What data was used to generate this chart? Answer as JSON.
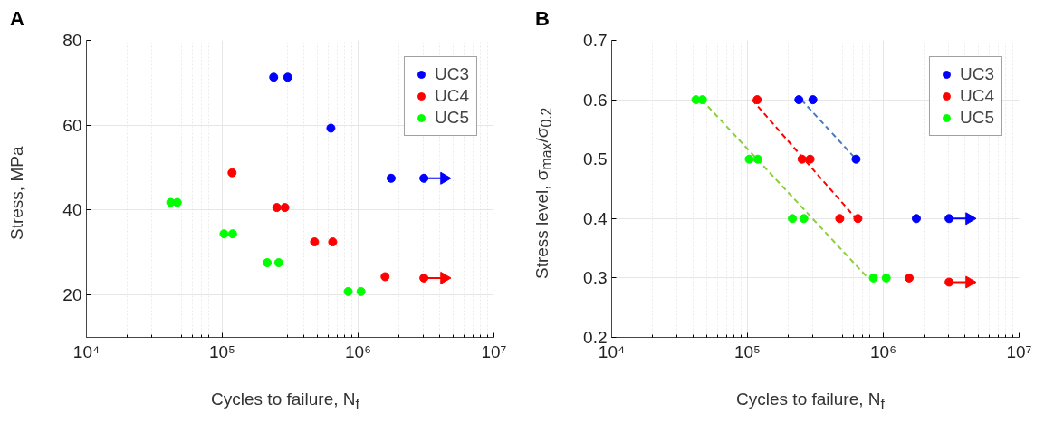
{
  "chart_data": [
    {
      "type": "scatter",
      "title": "A",
      "xlabel": "Cycles to failure, N$_{f}$",
      "ylabel": "Stress, MPa",
      "log": "x",
      "grid": true,
      "legend": "top right",
      "marker": "circle",
      "xlim": [
        10000,
        10000000
      ],
      "xticks": [
        {
          "value": 10000,
          "label": "10⁴"
        },
        {
          "value": 100000,
          "label": "10⁵"
        },
        {
          "value": 1000000,
          "label": "10⁶"
        },
        {
          "value": 10000000,
          "label": "10⁷"
        }
      ],
      "ylim": [
        10,
        80
      ],
      "yticks": [
        20,
        40,
        60,
        80
      ],
      "series": [
        {
          "name": "UC3",
          "color": "#0000ff",
          "x": [
            239000,
            303000,
            630000,
            1750000,
            3050000
          ],
          "values": [
            71.3,
            71.3,
            59.3,
            47.5,
            47.5
          ]
        },
        {
          "name": "UC4",
          "color": "#ff0000",
          "x": [
            118000,
            252000,
            289000,
            478000,
            650000,
            1580000,
            3050000
          ],
          "values": [
            48.8,
            40.6,
            40.6,
            32.5,
            32.5,
            24.3,
            24.0
          ]
        },
        {
          "name": "UC5",
          "color": "#00ff00",
          "x": [
            41700,
            46600,
            103000,
            119000,
            214000,
            260000,
            845000,
            1050000
          ],
          "values": [
            41.8,
            41.8,
            34.4,
            34.4,
            27.6,
            27.6,
            20.8,
            20.8
          ]
        },
        {
          "type": "line",
          "color": "#0000ff",
          "line_style": "solid",
          "marker": "triangle",
          "x": [
            3050000,
            4300000
          ],
          "values": [
            47.5,
            47.5
          ]
        },
        {
          "type": "line",
          "color": "#ff0000",
          "line_style": "solid",
          "marker": "triangle",
          "x": [
            3050000,
            4300000
          ],
          "values": [
            24.0,
            24.0
          ]
        }
      ]
    },
    {
      "type": "scatter",
      "title": "B",
      "xlabel": "Cycles to failure, N$_{f}$",
      "ylabel": "Stress level, σ$_{max}$/σ$_{0.2}$",
      "log": "x",
      "grid": true,
      "legend": "top right",
      "marker": "circle",
      "xlim": [
        10000,
        10000000
      ],
      "xticks": [
        {
          "value": 10000,
          "label": "10⁴"
        },
        {
          "value": 100000,
          "label": "10⁵"
        },
        {
          "value": 1000000,
          "label": "10⁶"
        },
        {
          "value": 10000000,
          "label": "10⁷"
        }
      ],
      "ylim": [
        0.2,
        0.7
      ],
      "yticks": [
        0.2,
        0.3,
        0.4,
        0.5,
        0.6,
        0.7
      ],
      "series": [
        {
          "type": "line",
          "color": "#4a7cc0",
          "line_style": "dashed",
          "marker": "none",
          "x": [
            249000,
            630000
          ],
          "values": [
            0.6,
            0.5
          ]
        },
        {
          "type": "line",
          "color": "#ff0000",
          "line_style": "dashed",
          "marker": "none",
          "x": [
            108000,
            630000
          ],
          "values": [
            0.6,
            0.4
          ]
        },
        {
          "type": "line",
          "color": "#8ccf3c",
          "line_style": "dashed",
          "marker": "none",
          "x": [
            46000,
            770000
          ],
          "values": [
            0.6,
            0.3
          ]
        },
        {
          "name": "UC3",
          "color": "#0000ff",
          "x": [
            239000,
            303000,
            630000,
            1750000,
            3050000
          ],
          "values": [
            0.6,
            0.6,
            0.5,
            0.4,
            0.4
          ]
        },
        {
          "name": "UC4",
          "color": "#ff0000",
          "x": [
            118000,
            252000,
            289000,
            478000,
            650000,
            1550000,
            3050000
          ],
          "values": [
            0.6,
            0.5,
            0.5,
            0.4,
            0.4,
            0.3,
            0.293
          ]
        },
        {
          "name": "UC5",
          "color": "#00ff00",
          "x": [
            41700,
            46600,
            103000,
            119000,
            214000,
            260000,
            845000,
            1050000
          ],
          "values": [
            0.6,
            0.6,
            0.5,
            0.5,
            0.4,
            0.4,
            0.3,
            0.3
          ]
        },
        {
          "type": "line",
          "color": "#0000ff",
          "line_style": "solid",
          "marker": "triangle",
          "x": [
            3050000,
            4300000
          ],
          "values": [
            0.4,
            0.4
          ]
        },
        {
          "type": "line",
          "color": "#ff0000",
          "line_style": "solid",
          "marker": "triangle",
          "x": [
            3050000,
            4300000
          ],
          "values": [
            0.293,
            0.293
          ]
        }
      ]
    }
  ]
}
